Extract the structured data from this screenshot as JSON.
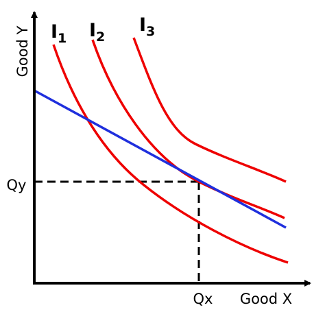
{
  "axes": {
    "y_label": "Good Y",
    "x_label": "Good X"
  },
  "markers": {
    "qy": "Qy",
    "qx": "Qx"
  },
  "curves": [
    {
      "label": "I",
      "subscript": "1"
    },
    {
      "label": "I",
      "subscript": "2"
    },
    {
      "label": "I",
      "subscript": "3"
    }
  ]
}
